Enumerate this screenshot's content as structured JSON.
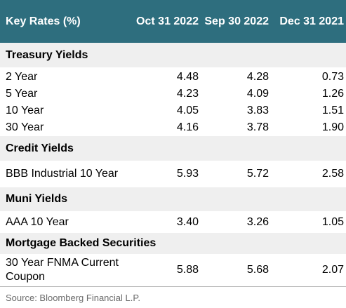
{
  "header": {
    "title": "Key Rates (%)",
    "col1": "Oct 31 2022",
    "col2": "Sep 30 2022",
    "col3": "Dec 31 2021"
  },
  "sections": [
    {
      "title": "Treasury Yields",
      "rows": [
        {
          "label": "2 Year",
          "v1": "4.48",
          "v2": "4.28",
          "v3": "0.73"
        },
        {
          "label": "5 Year",
          "v1": "4.23",
          "v2": "4.09",
          "v3": "1.26"
        },
        {
          "label": "10 Year",
          "v1": "4.05",
          "v2": "3.83",
          "v3": "1.51"
        },
        {
          "label": "30 Year",
          "v1": "4.16",
          "v2": "3.78",
          "v3": "1.90"
        }
      ]
    },
    {
      "title": "Credit Yields",
      "rows": [
        {
          "label": "BBB Industrial 10 Year",
          "v1": "5.93",
          "v2": "5.72",
          "v3": "2.58"
        }
      ]
    },
    {
      "title": "Muni Yields",
      "rows": [
        {
          "label": "AAA 10 Year",
          "v1": "3.40",
          "v2": "3.26",
          "v3": "1.05"
        }
      ]
    },
    {
      "title": "Mortgage Backed Securities",
      "rows": [
        {
          "label": "30 Year FNMA Current Coupon",
          "v1": "5.88",
          "v2": "5.68",
          "v3": "2.07"
        }
      ]
    }
  ],
  "source": "Source: Bloomberg Financial L.P.",
  "colors": {
    "header_bg": "#2e6e7e",
    "section_bg": "#efefef",
    "source_text": "#6b6b6b"
  }
}
